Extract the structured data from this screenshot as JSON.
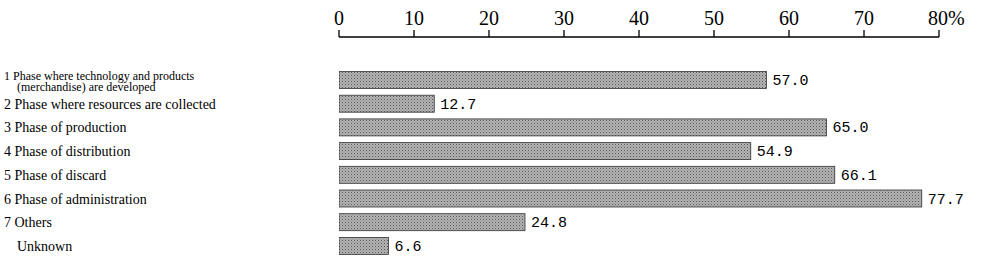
{
  "chart_data": {
    "type": "bar",
    "orientation": "horizontal",
    "categories": [
      "1 Phase where technology and products\n(merchandise) are developed",
      "2 Phase where resources are collected",
      "3 Phase of production",
      "4 Phase of distribution",
      "5 Phase of discard",
      "6 Phase of administration",
      "7 Others",
      "Unknown"
    ],
    "values": [
      57.0,
      12.7,
      65.0,
      54.9,
      66.1,
      77.7,
      24.8,
      6.6
    ],
    "value_labels": [
      "57.0",
      "12.7",
      "65.0",
      "54.9",
      "66.1",
      "77.7",
      "24.8",
      "6.6"
    ],
    "data_labels": true,
    "color": "#b4b4b4",
    "xlim": [
      0,
      80
    ],
    "xticks": [
      0,
      10,
      20,
      30,
      40,
      50,
      60,
      70,
      {
        "value": 80,
        "label": "80%"
      }
    ],
    "grid": false
  }
}
